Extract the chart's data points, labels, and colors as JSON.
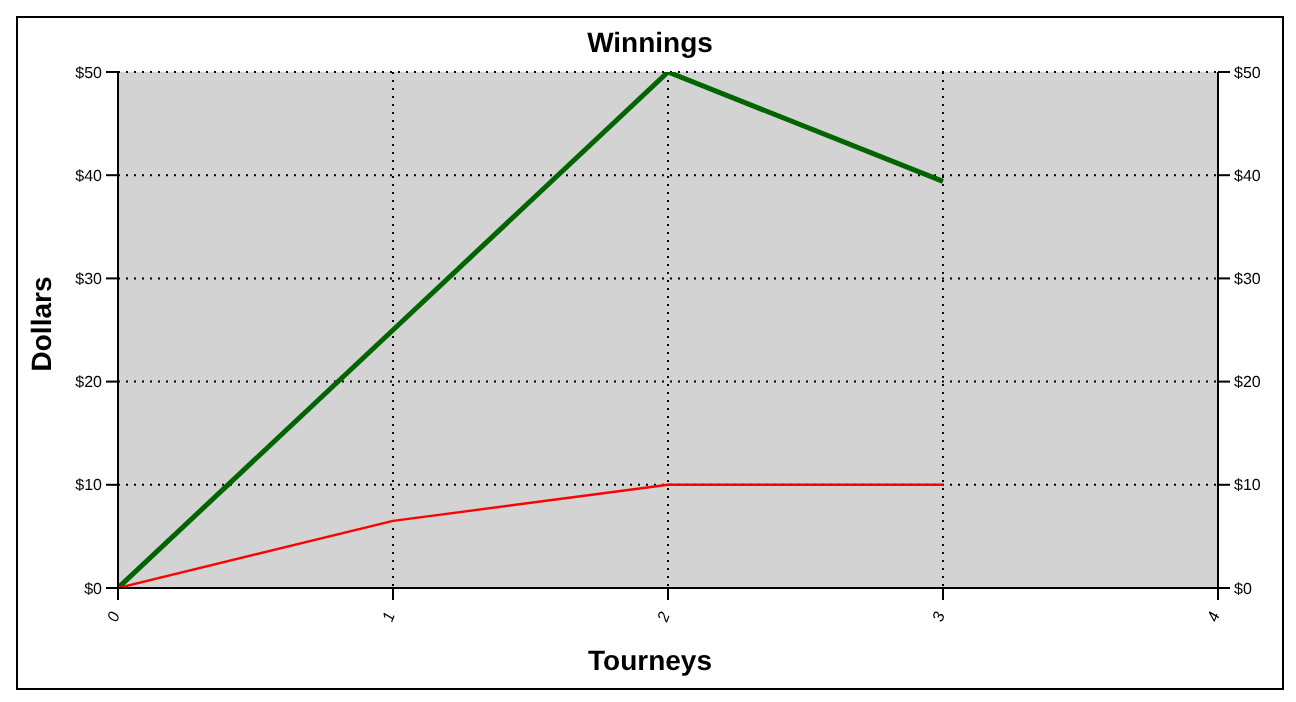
{
  "chart_data": {
    "type": "line",
    "title": "Winnings",
    "xlabel": "Tourneys",
    "ylabel": "Dollars",
    "x": [
      0,
      1,
      2,
      3
    ],
    "series": [
      {
        "color": "#006400",
        "values": [
          0,
          25,
          50,
          39.4
        ]
      },
      {
        "color": "#ff0000",
        "values": [
          0,
          6.5,
          10,
          10
        ]
      }
    ],
    "xlim": [
      0,
      4
    ],
    "xticks": [
      0,
      1,
      2,
      3,
      4
    ],
    "ylim": [
      0,
      50
    ],
    "yticks": [
      {
        "value": 0,
        "label": "$0"
      },
      {
        "value": 10,
        "label": "$10"
      },
      {
        "value": 20,
        "label": "$20"
      },
      {
        "value": 30,
        "label": "$30"
      },
      {
        "value": 40,
        "label": "$40"
      },
      {
        "value": 50,
        "label": "$50"
      }
    ],
    "y2lim": [
      0,
      50
    ],
    "y2ticks": [
      {
        "value": 0,
        "label": "$0"
      },
      {
        "value": 10,
        "label": "$10"
      },
      {
        "value": 20,
        "label": "$20"
      },
      {
        "value": 30,
        "label": "$30"
      },
      {
        "value": 40,
        "label": "$40"
      },
      {
        "value": 50,
        "label": "$50"
      }
    ],
    "grid": true,
    "marker": "none",
    "line_style": "solid"
  }
}
